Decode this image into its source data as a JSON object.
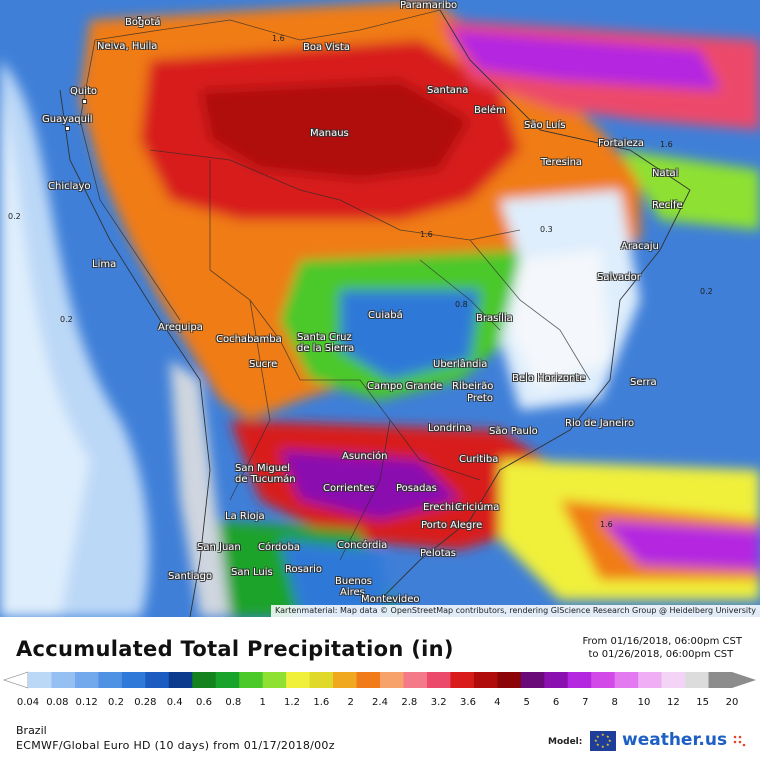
{
  "map": {
    "attribution": "Kartenmaterial: Map data © OpenStreetMap contributors, rendering GIScience Research Group @ Heidelberg University",
    "cities": [
      {
        "name": "Paramaribo",
        "pos": "top"
      },
      {
        "name": "Bogotá"
      },
      {
        "name": "Neiva, Huila"
      },
      {
        "name": "Boa Vista"
      },
      {
        "name": "Quito"
      },
      {
        "name": "Guayaquil"
      },
      {
        "name": "Santana"
      },
      {
        "name": "Belém"
      },
      {
        "name": "Manaus"
      },
      {
        "name": "São Luís"
      },
      {
        "name": "Fortaleza"
      },
      {
        "name": "Teresina"
      },
      {
        "name": "Natal"
      },
      {
        "name": "Chiclayo"
      },
      {
        "name": "Recife"
      },
      {
        "name": "Aracaju"
      },
      {
        "name": "Lima"
      },
      {
        "name": "Salvador"
      },
      {
        "name": "Arequipa"
      },
      {
        "name": "Cuiabá"
      },
      {
        "name": "Brasília"
      },
      {
        "name": "Cochabamba"
      },
      {
        "name": "Santa Cruz"
      },
      {
        "name": "de la Sierra"
      },
      {
        "name": "Sucre"
      },
      {
        "name": "Uberlândia"
      },
      {
        "name": "Campo Grande"
      },
      {
        "name": "Ribeirão"
      },
      {
        "name": "Preto"
      },
      {
        "name": "Belo Horizonte"
      },
      {
        "name": "Serra"
      },
      {
        "name": "Rio de Janeiro"
      },
      {
        "name": "Londrina"
      },
      {
        "name": "São Paulo"
      },
      {
        "name": "Asunción"
      },
      {
        "name": "San Miguel"
      },
      {
        "name": "de Tucumán"
      },
      {
        "name": "Curitiba"
      },
      {
        "name": "Corrientes"
      },
      {
        "name": "Posadas"
      },
      {
        "name": "Erechim"
      },
      {
        "name": "Criciúma"
      },
      {
        "name": "La Rioja"
      },
      {
        "name": "Porto Alegre"
      },
      {
        "name": "San Juan"
      },
      {
        "name": "Córdoba"
      },
      {
        "name": "Concórdia"
      },
      {
        "name": "Pelotas"
      },
      {
        "name": "Rosario"
      },
      {
        "name": "Santiago"
      },
      {
        "name": "San Luis"
      },
      {
        "name": "Buenos"
      },
      {
        "name": "Aires"
      },
      {
        "name": "Montevideo"
      }
    ],
    "value_labels": [
      "1.6",
      "0.8",
      "0.2",
      "0.3"
    ]
  },
  "legend": {
    "title": "Accumulated Total Precipitation (in)",
    "date_from": "From 01/16/2018, 06:00pm CST",
    "date_to": "to 01/26/2018, 06:00pm CST",
    "colors": [
      "#bcd8f7",
      "#96c0f2",
      "#72a9ec",
      "#4f92e4",
      "#2f79d8",
      "#1c5cc0",
      "#0c3a8c",
      "#13821f",
      "#1aa32a",
      "#4bc82a",
      "#8ee132",
      "#f0f03a",
      "#e0d82a",
      "#f0a820",
      "#f07b18",
      "#f6a26a",
      "#f47a8a",
      "#ec4a6a",
      "#d81c1c",
      "#b00c0c",
      "#8a0408",
      "#6a0a78",
      "#8a10b0",
      "#b428e0",
      "#d24ae8",
      "#e47aef",
      "#f0aef4",
      "#f4d4f6",
      "#dcdcdc",
      "#8c8c8c"
    ],
    "ticks": [
      "0.04",
      "0.08",
      "0.12",
      "0.2",
      "0.28",
      "0.4",
      "0.6",
      "0.8",
      "1",
      "1.2",
      "1.6",
      "2",
      "2.4",
      "2.8",
      "3.2",
      "3.6",
      "4",
      "5",
      "6",
      "7",
      "8",
      "10",
      "12",
      "15",
      "20"
    ],
    "region": "Brazil",
    "model_run": "ECMWF/Global Euro HD (10 days) from 01/17/2018/00z",
    "model_label": "Model:",
    "brand": "weather.us"
  }
}
